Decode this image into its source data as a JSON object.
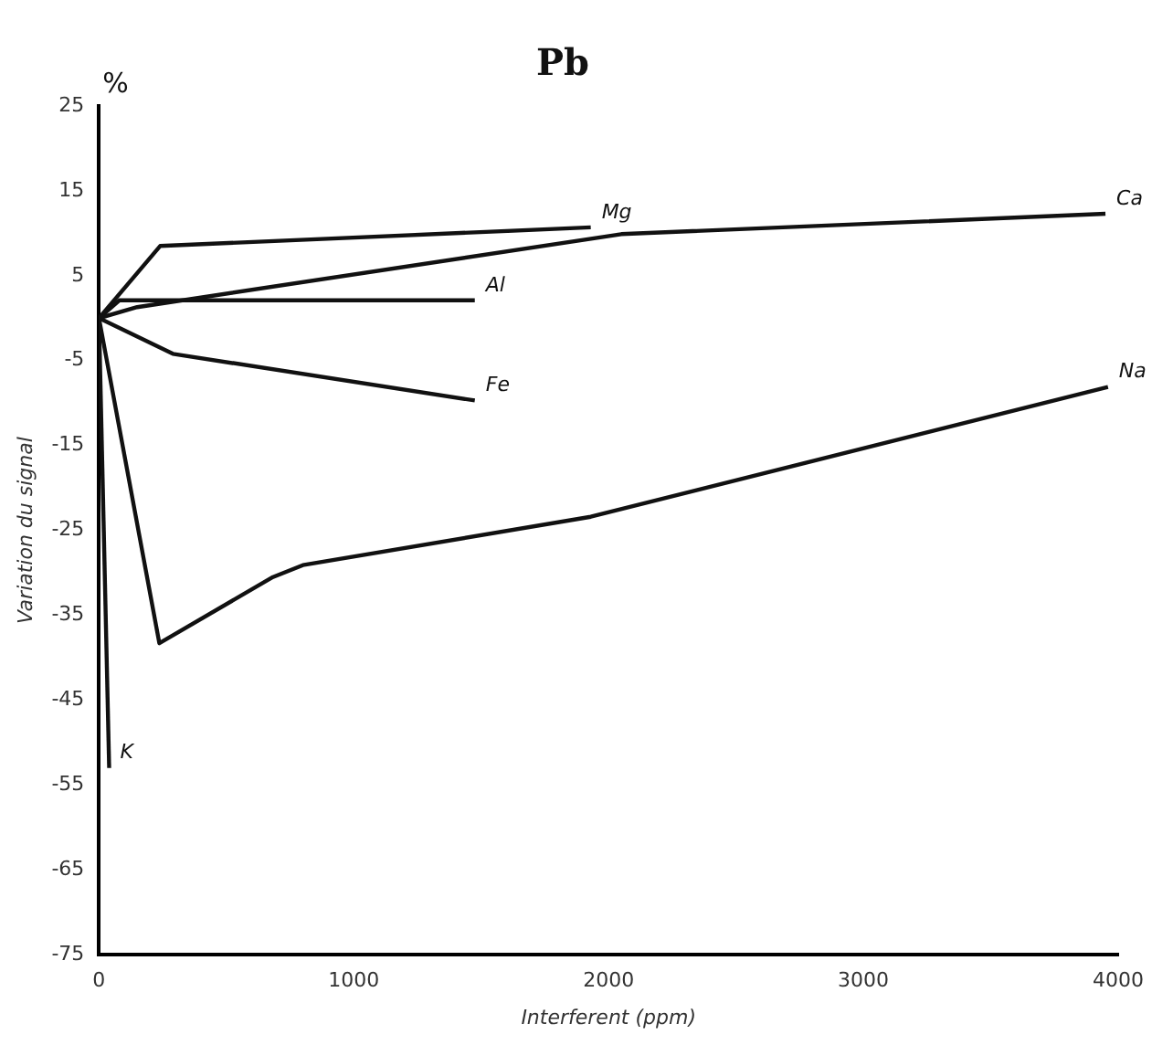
{
  "chart_data": {
    "type": "line",
    "title": "Pb",
    "xlabel": "Interferent (ppm)",
    "ylabel": "Variation du signal",
    "annotations": [
      "%"
    ],
    "xlim": [
      0,
      4000
    ],
    "xticks": [
      0,
      1000,
      2000,
      3000,
      4000
    ],
    "ylim": [
      -75,
      25
    ],
    "yticks": [
      25,
      15,
      5,
      -5,
      -15,
      -25,
      -35,
      -45,
      -55,
      -65,
      -75
    ],
    "grid": false,
    "legend": false,
    "marker": "none",
    "line_style": "solid",
    "series": [
      {
        "name": "Ca",
        "color": "#111111",
        "x": [
          0,
          150,
          2050,
          3950
        ],
        "values": [
          0,
          1.3,
          9.9,
          12.3
        ]
      },
      {
        "name": "Mg",
        "color": "#111111",
        "x": [
          0,
          240,
          1930
        ],
        "values": [
          0,
          8.5,
          10.7
        ]
      },
      {
        "name": "Al",
        "color": "#111111",
        "x": [
          0,
          80,
          1475
        ],
        "values": [
          0,
          2.1,
          2.1
        ]
      },
      {
        "name": "Fe",
        "color": "#111111",
        "x": [
          0,
          290,
          1475
        ],
        "values": [
          0,
          -4.2,
          -9.7
        ]
      },
      {
        "name": "Na",
        "color": "#111111",
        "x": [
          0,
          237,
          683,
          800,
          1930,
          3960
        ],
        "values": [
          0,
          -38.3,
          -30.5,
          -29.1,
          -23.4,
          -8.1
        ]
      },
      {
        "name": "K",
        "color": "#111111",
        "x": [
          0,
          40
        ],
        "values": [
          0,
          -53
        ]
      }
    ]
  }
}
